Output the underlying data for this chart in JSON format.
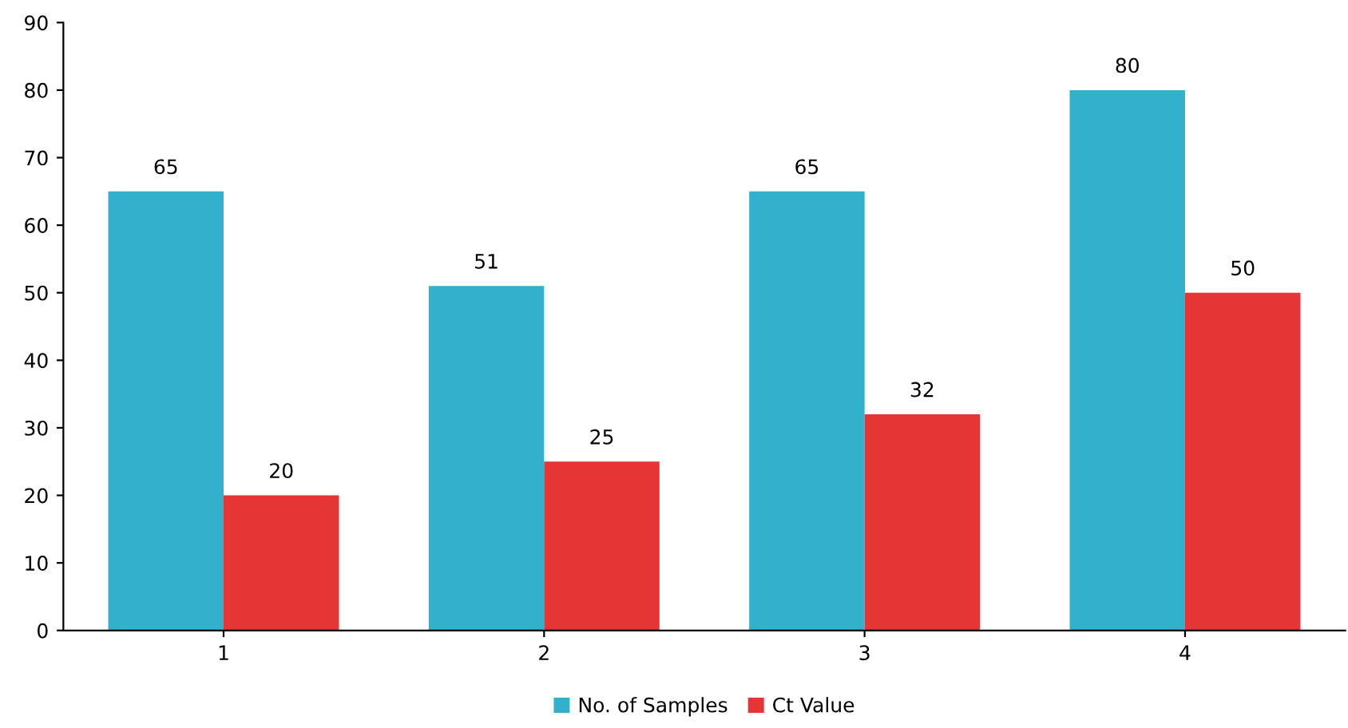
{
  "chart_data": {
    "type": "bar",
    "categories": [
      "1",
      "2",
      "3",
      "4"
    ],
    "series": [
      {
        "name": "No. of Samples",
        "color": "#33b0cb",
        "values": [
          65,
          51,
          65,
          80
        ]
      },
      {
        "name": "Ct Value",
        "color": "#e53535",
        "values": [
          20,
          25,
          32,
          50
        ]
      }
    ],
    "ylim": [
      0,
      90
    ],
    "yticks": [
      0,
      10,
      20,
      30,
      40,
      50,
      60,
      70,
      80,
      90
    ],
    "data_labels": true,
    "grid": false,
    "legend": "bottom"
  }
}
